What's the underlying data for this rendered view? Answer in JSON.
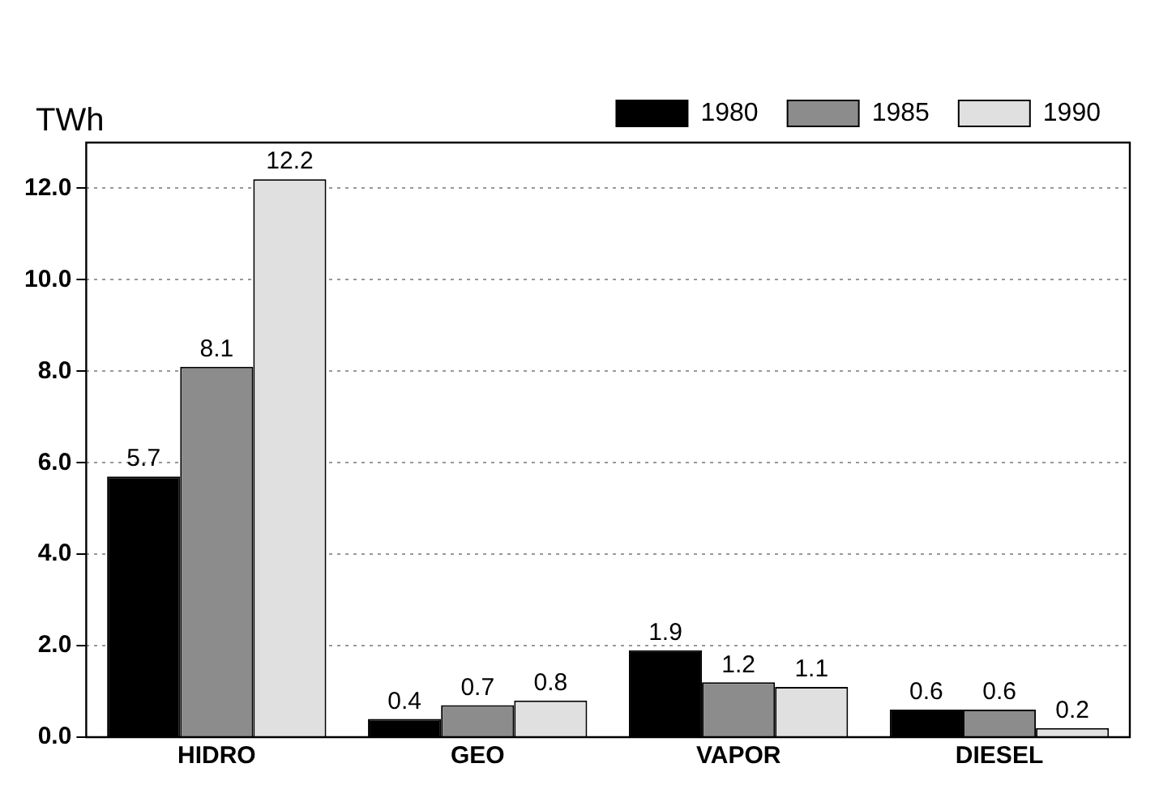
{
  "chart_data": {
    "type": "bar",
    "ylabel": "TWh",
    "categories": [
      "HIDRO",
      "GEO",
      "VAPOR",
      "DIESEL"
    ],
    "series": [
      {
        "name": "1980",
        "color": "#000000",
        "values": [
          5.7,
          0.4,
          1.9,
          0.6
        ]
      },
      {
        "name": "1985",
        "color": "#8c8c8c",
        "values": [
          8.1,
          0.7,
          1.2,
          0.6
        ]
      },
      {
        "name": "1990",
        "color": "#e0e0e0",
        "values": [
          12.2,
          0.8,
          1.1,
          0.2
        ]
      }
    ],
    "ylim": [
      0,
      13
    ],
    "yticks": [
      {
        "value": 0,
        "label": "0.0"
      },
      {
        "value": 2,
        "label": "2.0"
      },
      {
        "value": 4,
        "label": "4.0"
      },
      {
        "value": 6,
        "label": "6.0"
      },
      {
        "value": 8,
        "label": "8.0"
      },
      {
        "value": 10,
        "label": "10.0"
      },
      {
        "value": 12,
        "label": "12.0"
      }
    ],
    "grid": "y",
    "legend": "top right",
    "data_labels": true
  }
}
